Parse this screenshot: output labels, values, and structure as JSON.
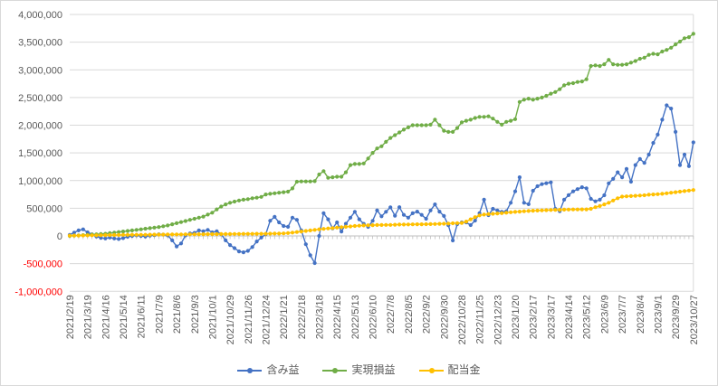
{
  "chart_data": {
    "type": "line",
    "title": "",
    "legend_position": "bottom",
    "grid_color": "#D9D9D9",
    "axis_line_color": "#BFBFBF",
    "x_axis": {
      "start_date": "2021/2/19",
      "interval_days": 7,
      "points": 141,
      "tick_every_n_points": 4,
      "label_color": "#595959",
      "tick_labels": [
        "2021/2/19",
        "2021/3/19",
        "2021/4/16",
        "2021/5/14",
        "2021/6/11",
        "2021/7/9",
        "2021/8/6",
        "2021/9/3",
        "2021/10/1",
        "2021/10/29",
        "2021/11/26",
        "2021/12/24",
        "2022/1/21",
        "2022/2/18",
        "2022/3/18",
        "2022/4/15",
        "2022/5/13",
        "2022/6/10",
        "2022/7/8",
        "2022/8/5",
        "2022/9/2",
        "2022/9/30",
        "2022/10/28",
        "2022/11/25",
        "2022/12/23",
        "2023/1/20",
        "2023/2/17",
        "2023/3/17",
        "2023/4/14",
        "2023/5/12",
        "2023/6/9",
        "2023/7/7",
        "2023/8/4",
        "2023/9/1",
        "2023/9/29",
        "2023/10/27"
      ]
    },
    "y_axis": {
      "min": -1000000,
      "max": 4000000,
      "step": 500000,
      "label_color": "#595959",
      "negative_label_color": "#FF0000",
      "tick_labels": [
        "4,000,000",
        "3,500,000",
        "3,000,000",
        "2,500,000",
        "2,000,000",
        "1,500,000",
        "1,000,000",
        "500,000",
        "0",
        "-500,000",
        "-1,000,000"
      ]
    },
    "series": [
      {
        "name": "含み益",
        "color": "#4472C4",
        "values": [
          20000,
          60000,
          100000,
          120000,
          65000,
          30000,
          -10000,
          -35000,
          -45000,
          -30000,
          -45000,
          -55000,
          -40000,
          -15000,
          0,
          10000,
          0,
          -10000,
          5000,
          15000,
          30000,
          25000,
          10000,
          -80000,
          -190000,
          -135000,
          10000,
          45000,
          55000,
          100000,
          85000,
          110000,
          65000,
          85000,
          30000,
          -80000,
          -165000,
          -220000,
          -280000,
          -295000,
          -270000,
          -200000,
          -100000,
          -30000,
          30000,
          275000,
          345000,
          245000,
          180000,
          165000,
          330000,
          290000,
          100000,
          -150000,
          -350000,
          -490000,
          0,
          410000,
          300000,
          135000,
          245000,
          80000,
          220000,
          330000,
          436000,
          300000,
          218000,
          163000,
          273000,
          462000,
          355000,
          436000,
          518000,
          365000,
          520000,
          380000,
          330000,
          410000,
          440000,
          380000,
          310000,
          460000,
          570000,
          440000,
          360000,
          195000,
          -82000,
          213000,
          245000,
          245000,
          196000,
          278000,
          409000,
          655000,
          376000,
          490000,
          460000,
          435000,
          445000,
          600000,
          805000,
          1060000,
          600000,
          573000,
          816000,
          898000,
          936000,
          952000,
          968000,
          490000,
          447000,
          654000,
          736000,
          805000,
          845000,
          880000,
          860000,
          670000,
          625000,
          655000,
          735000,
          950000,
          1030000,
          1150000,
          1060000,
          1210000,
          980000,
          1280000,
          1390000,
          1320000,
          1470000,
          1680000,
          1830000,
          2100000,
          2360000,
          2300000,
          1880000,
          1280000,
          1470000,
          1260000,
          1690000
        ]
      },
      {
        "name": "実現損益",
        "color": "#70AD47",
        "values": [
          0,
          5000,
          10000,
          15000,
          20000,
          25000,
          30000,
          35000,
          40000,
          50000,
          60000,
          70000,
          80000,
          90000,
          100000,
          110000,
          120000,
          130000,
          140000,
          150000,
          160000,
          175000,
          190000,
          210000,
          230000,
          250000,
          270000,
          290000,
          310000,
          330000,
          350000,
          385000,
          420000,
          480000,
          530000,
          570000,
          600000,
          620000,
          640000,
          655000,
          665000,
          680000,
          690000,
          705000,
          750000,
          760000,
          770000,
          780000,
          790000,
          800000,
          858000,
          980000,
          985000,
          985000,
          985000,
          990000,
          1110000,
          1170000,
          1050000,
          1060000,
          1070000,
          1070000,
          1150000,
          1280000,
          1300000,
          1300000,
          1310000,
          1400000,
          1500000,
          1580000,
          1620000,
          1700000,
          1770000,
          1820000,
          1870000,
          1920000,
          1960000,
          2000000,
          2000000,
          2000000,
          2000000,
          2010000,
          2100000,
          2000000,
          1900000,
          1880000,
          1880000,
          1950000,
          2050000,
          2080000,
          2100000,
          2130000,
          2150000,
          2150000,
          2160000,
          2120000,
          2060000,
          2010000,
          2060000,
          2080000,
          2110000,
          2420000,
          2460000,
          2480000,
          2460000,
          2480000,
          2500000,
          2530000,
          2570000,
          2600000,
          2650000,
          2720000,
          2750000,
          2760000,
          2780000,
          2790000,
          2830000,
          3070000,
          3080000,
          3070000,
          3100000,
          3180000,
          3100000,
          3090000,
          3090000,
          3100000,
          3130000,
          3160000,
          3200000,
          3220000,
          3270000,
          3290000,
          3280000,
          3330000,
          3360000,
          3400000,
          3460000,
          3510000,
          3570000,
          3590000,
          3650000
        ]
      },
      {
        "name": "配当金",
        "color": "#FFC000",
        "values": [
          5000,
          6000,
          7000,
          8000,
          10000,
          11000,
          12000,
          13000,
          15000,
          16000,
          17000,
          18000,
          20000,
          20000,
          21000,
          21000,
          22000,
          22000,
          23000,
          24000,
          25000,
          25000,
          26000,
          27000,
          28000,
          28000,
          29000,
          30000,
          30000,
          31000,
          31000,
          32000,
          33000,
          33000,
          34000,
          34000,
          35000,
          36000,
          36000,
          37000,
          38000,
          38000,
          39000,
          39000,
          40000,
          41000,
          42000,
          43000,
          45000,
          52000,
          60000,
          70000,
          80000,
          90000,
          100000,
          110000,
          120000,
          128000,
          135000,
          142000,
          150000,
          158000,
          165000,
          172000,
          180000,
          185000,
          190000,
          193000,
          195000,
          197000,
          198000,
          199000,
          200000,
          202000,
          205000,
          206000,
          208000,
          209000,
          210000,
          211000,
          212000,
          214000,
          215000,
          218000,
          220000,
          224000,
          228000,
          232000,
          235000,
          260000,
          300000,
          340000,
          370000,
          385000,
          395000,
          400000,
          405000,
          412000,
          420000,
          428000,
          435000,
          440000,
          445000,
          450000,
          455000,
          458000,
          462000,
          465000,
          468000,
          470000,
          472000,
          475000,
          476000,
          478000,
          478000,
          480000,
          480000,
          490000,
          520000,
          540000,
          570000,
          600000,
          640000,
          680000,
          710000,
          715000,
          720000,
          725000,
          730000,
          735000,
          745000,
          750000,
          755000,
          760000,
          770000,
          780000,
          790000,
          800000,
          810000,
          820000,
          830000
        ]
      }
    ]
  }
}
